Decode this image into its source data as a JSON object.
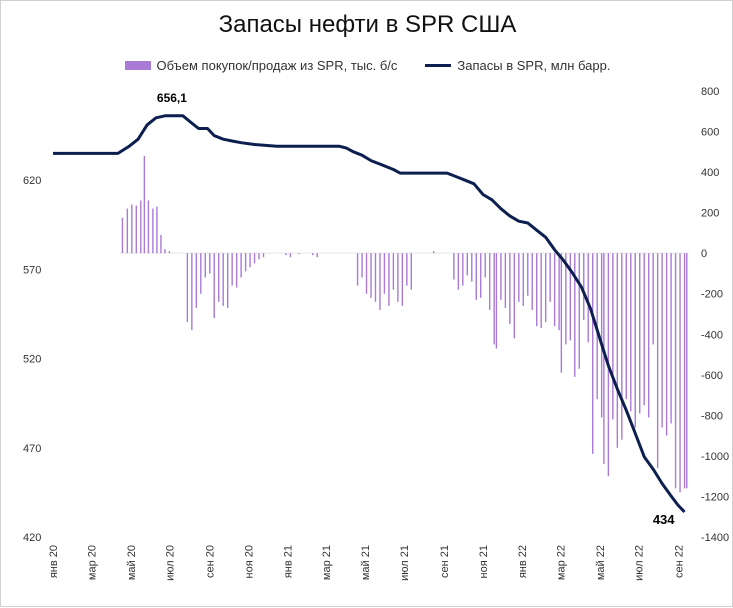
{
  "chart_data": {
    "type": "bar+line",
    "title": "Запасы нефти в SPR США",
    "legend": {
      "bars": "Объем покупок/продаж из SPR, тыс. б/с",
      "line": "Запасы в SPR, млн барр."
    },
    "colors": {
      "bars": "#a97ad6",
      "line": "#0c1f4f"
    },
    "left_axis": {
      "min": 420,
      "max": 670,
      "ticks": [
        "420",
        "470",
        "520",
        "570",
        "620"
      ]
    },
    "right_axis": {
      "min": -1400,
      "max": 800,
      "ticks": [
        "-1400",
        "-1200",
        "-1000",
        "-800",
        "-600",
        "-400",
        "-200",
        "0",
        "200",
        "400",
        "600",
        "800"
      ]
    },
    "x_range": [
      0,
      142
    ],
    "x_ticks": [
      {
        "label": "янв 20",
        "x": 0
      },
      {
        "label": "мар 20",
        "x": 8.6
      },
      {
        "label": "май 20",
        "x": 17.4
      },
      {
        "label": "июл 20",
        "x": 26.0
      },
      {
        "label": "сен 20",
        "x": 34.9
      },
      {
        "label": "ноя 20",
        "x": 43.6
      },
      {
        "label": "янв 21",
        "x": 52.4
      },
      {
        "label": "мар 21",
        "x": 60.9
      },
      {
        "label": "май 21",
        "x": 69.7
      },
      {
        "label": "июл 21",
        "x": 78.4
      },
      {
        "label": "сен 21",
        "x": 87.3
      },
      {
        "label": "ноя 21",
        "x": 96.0
      },
      {
        "label": "янв 22",
        "x": 104.7
      },
      {
        "label": "мар 22",
        "x": 113.3
      },
      {
        "label": "май 22",
        "x": 122.1
      },
      {
        "label": "июл 22",
        "x": 130.7
      },
      {
        "label": "сен 22",
        "x": 139.6
      }
    ],
    "line_series": {
      "name": "Запасы в SPR, млн барр.",
      "points": [
        [
          0,
          635
        ],
        [
          14.5,
          635
        ],
        [
          17,
          639
        ],
        [
          19,
          643
        ],
        [
          21,
          651
        ],
        [
          23,
          655
        ],
        [
          25,
          656.1
        ],
        [
          29,
          656.1
        ],
        [
          31,
          652
        ],
        [
          32.5,
          649
        ],
        [
          34.5,
          649
        ],
        [
          36,
          645
        ],
        [
          38,
          643
        ],
        [
          40,
          642
        ],
        [
          42,
          641
        ],
        [
          45,
          640
        ],
        [
          50,
          639
        ],
        [
          60,
          639
        ],
        [
          64,
          639
        ],
        [
          65.5,
          638
        ],
        [
          67,
          636
        ],
        [
          69,
          634
        ],
        [
          71,
          631
        ],
        [
          73,
          629
        ],
        [
          76,
          626
        ],
        [
          77.5,
          624
        ],
        [
          85,
          624
        ],
        [
          88,
          624
        ],
        [
          90,
          622
        ],
        [
          92,
          620
        ],
        [
          94,
          618
        ],
        [
          96,
          612
        ],
        [
          98,
          609
        ],
        [
          100,
          604
        ],
        [
          102,
          600
        ],
        [
          104,
          597
        ],
        [
          106,
          596
        ],
        [
          108,
          592
        ],
        [
          110,
          588
        ],
        [
          112,
          581
        ],
        [
          114,
          575
        ],
        [
          116,
          568
        ],
        [
          118,
          560
        ],
        [
          120,
          548
        ],
        [
          122,
          532
        ],
        [
          124,
          516
        ],
        [
          126,
          503
        ],
        [
          128,
          491
        ],
        [
          130,
          478
        ],
        [
          132,
          465
        ],
        [
          134,
          458
        ],
        [
          136,
          450
        ],
        [
          138,
          443
        ],
        [
          139.5,
          438
        ],
        [
          141,
          434
        ]
      ],
      "annotations": [
        {
          "text": "656,1",
          "x": 27,
          "y": 656.1
        },
        {
          "text": "434",
          "x": 141,
          "y": 434
        }
      ]
    },
    "bar_series": {
      "name": "Объем покупок/продаж из SPR, тыс. б/с",
      "points": [
        [
          15.5,
          175
        ],
        [
          16.6,
          220
        ],
        [
          17.6,
          240
        ],
        [
          18.6,
          235
        ],
        [
          19.6,
          260
        ],
        [
          20.4,
          480
        ],
        [
          21.3,
          260
        ],
        [
          22.3,
          220
        ],
        [
          23.2,
          230
        ],
        [
          24.1,
          90
        ],
        [
          25.0,
          20
        ],
        [
          26.0,
          10
        ],
        [
          30.0,
          -340
        ],
        [
          31.0,
          -380
        ],
        [
          32.0,
          -270
        ],
        [
          33.0,
          -200
        ],
        [
          34.0,
          -120
        ],
        [
          35.0,
          -100
        ],
        [
          36.0,
          -320
        ],
        [
          37.0,
          -240
        ],
        [
          38.0,
          -260
        ],
        [
          39.0,
          -270
        ],
        [
          40.0,
          -160
        ],
        [
          41.0,
          -170
        ],
        [
          42.0,
          -120
        ],
        [
          43.0,
          -90
        ],
        [
          44.0,
          -70
        ],
        [
          45.0,
          -50
        ],
        [
          46.0,
          -30
        ],
        [
          47.0,
          -20
        ],
        [
          52.0,
          -10
        ],
        [
          53.0,
          -20
        ],
        [
          55.0,
          -5
        ],
        [
          58.0,
          -10
        ],
        [
          59.0,
          -20
        ],
        [
          68.0,
          -160
        ],
        [
          69.0,
          -120
        ],
        [
          70.0,
          -200
        ],
        [
          71.0,
          -220
        ],
        [
          72.0,
          -240
        ],
        [
          73.0,
          -280
        ],
        [
          74.0,
          -200
        ],
        [
          75.0,
          -260
        ],
        [
          76.0,
          -180
        ],
        [
          77.0,
          -240
        ],
        [
          78.0,
          -260
        ],
        [
          79.0,
          -160
        ],
        [
          80.0,
          -180
        ],
        [
          85.0,
          10
        ],
        [
          89.5,
          -130
        ],
        [
          90.5,
          -180
        ],
        [
          91.5,
          -160
        ],
        [
          92.5,
          -110
        ],
        [
          93.5,
          -140
        ],
        [
          94.5,
          -230
        ],
        [
          95.5,
          -220
        ],
        [
          96.5,
          -120
        ],
        [
          97.5,
          -280
        ],
        [
          98.5,
          -450
        ],
        [
          99.0,
          -470
        ],
        [
          100.0,
          -230
        ],
        [
          101.0,
          -270
        ],
        [
          102.0,
          -350
        ],
        [
          103.0,
          -420
        ],
        [
          104.0,
          -240
        ],
        [
          105.0,
          -260
        ],
        [
          106.0,
          -210
        ],
        [
          107.0,
          -280
        ],
        [
          108.0,
          -360
        ],
        [
          109.0,
          -370
        ],
        [
          110.0,
          -340
        ],
        [
          111.0,
          -240
        ],
        [
          112.0,
          -360
        ],
        [
          113.0,
          -380
        ],
        [
          113.5,
          -590
        ],
        [
          114.5,
          -450
        ],
        [
          115.5,
          -430
        ],
        [
          116.5,
          -610
        ],
        [
          117.5,
          -570
        ],
        [
          118.5,
          -330
        ],
        [
          119.5,
          -440
        ],
        [
          120.5,
          -990
        ],
        [
          121.5,
          -720
        ],
        [
          122.5,
          -810
        ],
        [
          123.0,
          -1040
        ],
        [
          124.0,
          -1100
        ],
        [
          125.0,
          -820
        ],
        [
          126.0,
          -960
        ],
        [
          127.0,
          -920
        ],
        [
          128.0,
          -720
        ],
        [
          129.0,
          -780
        ],
        [
          130.0,
          -860
        ],
        [
          131.0,
          -790
        ],
        [
          132.0,
          -750
        ],
        [
          133.0,
          -810
        ],
        [
          134.0,
          -450
        ],
        [
          135.0,
          -1060
        ],
        [
          136.0,
          -860
        ],
        [
          137.0,
          -900
        ],
        [
          138.0,
          -840
        ],
        [
          139.0,
          -1160
        ],
        [
          140.0,
          -1180
        ],
        [
          141.0,
          -1160
        ],
        [
          141.5,
          -1160
        ]
      ]
    }
  }
}
